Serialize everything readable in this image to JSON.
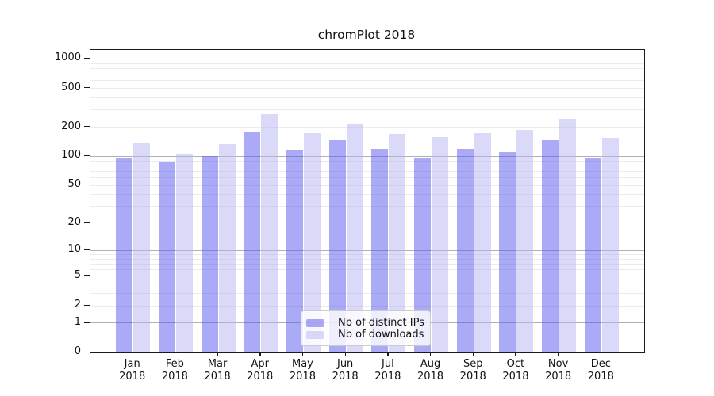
{
  "chart": {
    "window_title": "chromPlot 2018"
  },
  "chart_data": {
    "type": "bar",
    "title": "chromPlot 2018",
    "xlabel": "",
    "ylabel": "",
    "year_label": "2018",
    "categories": [
      "Jan",
      "Feb",
      "Mar",
      "Apr",
      "May",
      "Jun",
      "Jul",
      "Aug",
      "Sep",
      "Oct",
      "Nov",
      "Dec"
    ],
    "series": [
      {
        "name": "Nb of distinct IPs",
        "color": "rgba(85,85,238,0.5)",
        "color_flat": "#aaaaf6",
        "values": [
          97,
          87,
          100,
          177,
          115,
          147,
          119,
          97,
          119,
          110,
          148,
          95
        ]
      },
      {
        "name": "Nb of downloads",
        "color": "rgba(181,181,241,0.5)",
        "color_flat": "#dcdcf9",
        "values": [
          138,
          107,
          134,
          275,
          173,
          218,
          170,
          158,
          173,
          186,
          242,
          155
        ]
      }
    ],
    "y_scale": "log1p",
    "y_ticks": [
      0,
      1,
      2,
      5,
      10,
      20,
      50,
      100,
      200,
      500,
      1000
    ],
    "y_major_gridlines": [
      1,
      10,
      100,
      1000
    ],
    "ylim": [
      0,
      1240
    ],
    "grid": "both",
    "legend_position": "lower center",
    "colors": {
      "major_grid": "#b1b1b1",
      "minor_grid": "#ebebeb",
      "spine": "#1a1a1a",
      "background": "#ffffff"
    }
  }
}
